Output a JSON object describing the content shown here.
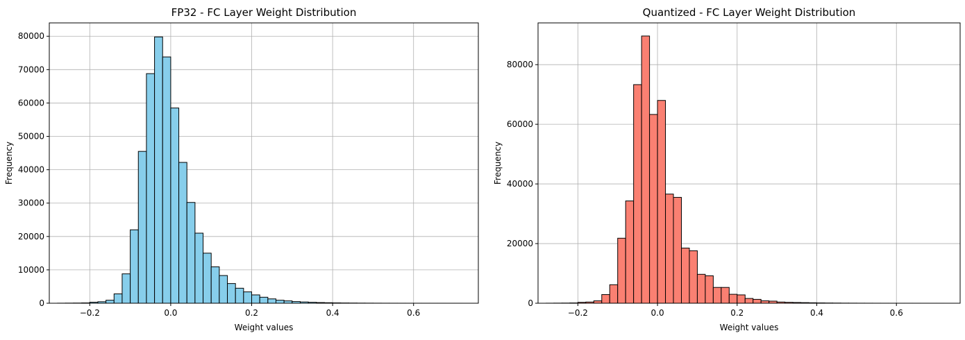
{
  "chart_data": [
    {
      "type": "bar",
      "title": "FP32 - FC Layer Weight Distribution",
      "xlabel": "Weight values",
      "ylabel": "Frequency",
      "xlim": [
        -0.3,
        0.76
      ],
      "ylim": [
        0,
        84000
      ],
      "xticks": [
        -0.2,
        0.0,
        0.2,
        0.4,
        0.6
      ],
      "xtick_labels": [
        "−0.2",
        "0.0",
        "0.2",
        "0.4",
        "0.6"
      ],
      "yticks": [
        0,
        10000,
        20000,
        30000,
        40000,
        50000,
        60000,
        70000,
        80000
      ],
      "ytick_labels": [
        "0",
        "10000",
        "20000",
        "30000",
        "40000",
        "50000",
        "60000",
        "70000",
        "80000"
      ],
      "grid": true,
      "color": "#87ceeb",
      "edgecolor": "#000000",
      "bin_edges": [
        -0.28,
        -0.26,
        -0.24,
        -0.22,
        -0.2,
        -0.18,
        -0.16,
        -0.14,
        -0.12,
        -0.1,
        -0.08,
        -0.06,
        -0.04,
        -0.02,
        0.0,
        0.02,
        0.04,
        0.06,
        0.08,
        0.1,
        0.12,
        0.14,
        0.16,
        0.18,
        0.2,
        0.22,
        0.24,
        0.26,
        0.28,
        0.3,
        0.32,
        0.34,
        0.36,
        0.38,
        0.4,
        0.42,
        0.44,
        0.46,
        0.48,
        0.5,
        0.52,
        0.54,
        0.56,
        0.58,
        0.6,
        0.62,
        0.64,
        0.66,
        0.68,
        0.7,
        0.72
      ],
      "values": [
        20,
        40,
        60,
        100,
        300,
        450,
        900,
        2800,
        8800,
        22000,
        45500,
        68800,
        79800,
        73800,
        58500,
        42200,
        30200,
        21000,
        15000,
        10900,
        8300,
        5900,
        4500,
        3400,
        2500,
        1800,
        1300,
        900,
        700,
        500,
        380,
        280,
        200,
        150,
        110,
        80,
        60,
        40,
        30,
        20,
        15,
        10,
        8,
        6,
        5,
        4,
        3,
        2,
        1,
        1
      ]
    },
    {
      "type": "bar",
      "title": "Quantized - FC Layer Weight Distribution",
      "xlabel": "Weight values",
      "ylabel": "Frequency",
      "xlim": [
        -0.3,
        0.76
      ],
      "ylim": [
        0,
        94000
      ],
      "xticks": [
        -0.2,
        0.0,
        0.2,
        0.4,
        0.6
      ],
      "xtick_labels": [
        "−0.2",
        "0.0",
        "0.2",
        "0.4",
        "0.6"
      ],
      "yticks": [
        0,
        20000,
        40000,
        60000,
        80000
      ],
      "ytick_labels": [
        "0",
        "20000",
        "40000",
        "60000",
        "80000"
      ],
      "grid": true,
      "color": "#fa8072",
      "edgecolor": "#000000",
      "bin_edges": [
        -0.28,
        -0.26,
        -0.24,
        -0.22,
        -0.2,
        -0.18,
        -0.16,
        -0.14,
        -0.12,
        -0.1,
        -0.08,
        -0.06,
        -0.04,
        -0.02,
        0.0,
        0.02,
        0.04,
        0.06,
        0.08,
        0.1,
        0.12,
        0.14,
        0.16,
        0.18,
        0.2,
        0.22,
        0.24,
        0.26,
        0.28,
        0.3,
        0.32,
        0.34,
        0.36,
        0.38,
        0.4,
        0.42,
        0.44,
        0.46,
        0.48,
        0.5,
        0.52,
        0.54,
        0.56,
        0.58,
        0.6,
        0.62,
        0.64,
        0.66,
        0.68,
        0.7,
        0.72
      ],
      "values": [
        20,
        40,
        60,
        100,
        300,
        400,
        800,
        2900,
        6200,
        21800,
        34300,
        73300,
        89600,
        63300,
        68000,
        36600,
        35500,
        18500,
        17600,
        9700,
        9200,
        5300,
        5300,
        3000,
        2800,
        1600,
        1300,
        800,
        700,
        400,
        300,
        250,
        200,
        150,
        110,
        80,
        60,
        40,
        30,
        20,
        15,
        10,
        8,
        6,
        5,
        4,
        3,
        2,
        1,
        1
      ]
    }
  ]
}
